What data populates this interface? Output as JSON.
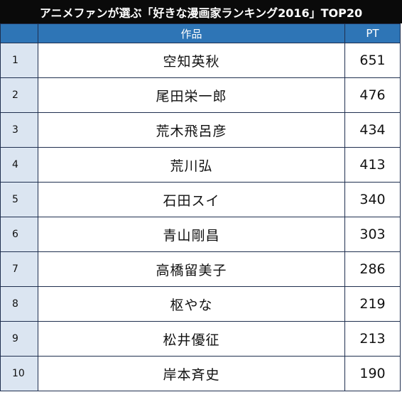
{
  "title": "アニメファンが選ぶ「好きな漫画家ランキング2016」TOP20",
  "table": {
    "headers": {
      "rank": "",
      "title": "作品",
      "pt": "PT"
    },
    "rows": [
      {
        "rank": "1",
        "name": "空知英秋",
        "pt": "651"
      },
      {
        "rank": "2",
        "name": "尾田栄一郎",
        "pt": "476"
      },
      {
        "rank": "3",
        "name": "荒木飛呂彦",
        "pt": "434"
      },
      {
        "rank": "4",
        "name": "荒川弘",
        "pt": "413"
      },
      {
        "rank": "5",
        "name": "石田スイ",
        "pt": "340"
      },
      {
        "rank": "6",
        "name": "青山剛昌",
        "pt": "303"
      },
      {
        "rank": "7",
        "name": "高橋留美子",
        "pt": "286"
      },
      {
        "rank": "8",
        "name": "枢やな",
        "pt": "219"
      },
      {
        "rank": "9",
        "name": "松井優征",
        "pt": "213"
      },
      {
        "rank": "10",
        "name": "岸本斉史",
        "pt": "190"
      }
    ]
  },
  "colors": {
    "title_bg": "#0a0a0a",
    "header_bg": "#2e75b6",
    "rank_bg": "#dbe5f1"
  }
}
